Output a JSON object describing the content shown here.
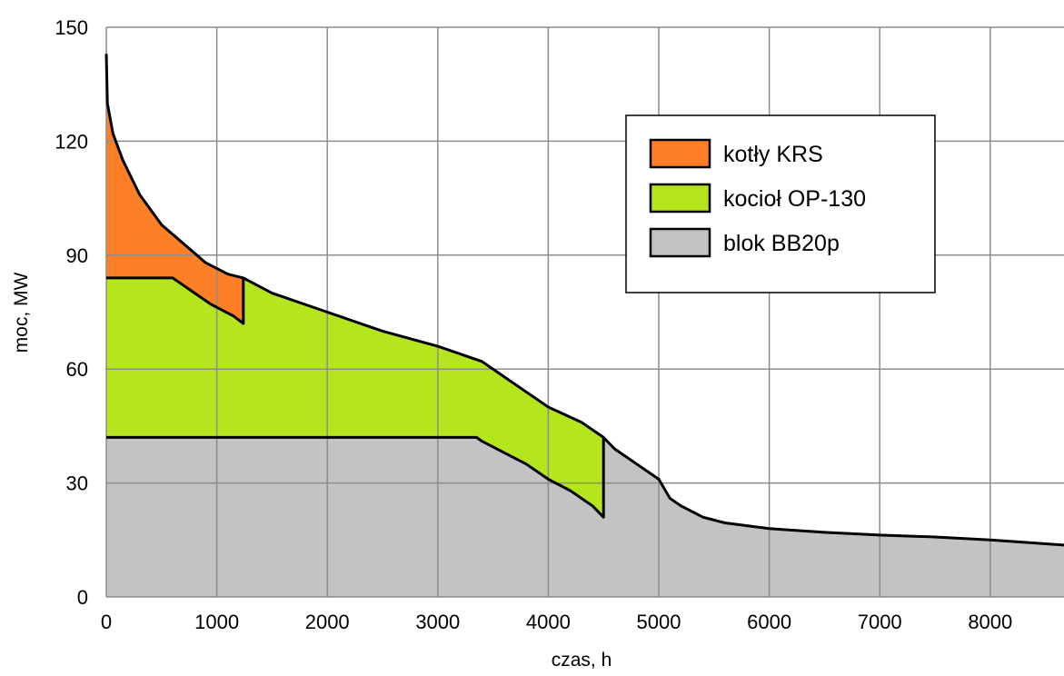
{
  "chart_data": {
    "type": "area",
    "xlabel": "czas, h",
    "ylabel": "moc, MW",
    "xlim": [
      0,
      8760
    ],
    "ylim": [
      0,
      150
    ],
    "x_ticks": [
      0,
      1000,
      2000,
      3000,
      4000,
      5000,
      6000,
      7000,
      8000
    ],
    "y_ticks": [
      0,
      30,
      60,
      90,
      120,
      150
    ],
    "grid": true,
    "legend_position": "upper-right",
    "series": [
      {
        "name": "kotły KRS",
        "color": "#ff7f27",
        "kind": "band",
        "upper": [
          [
            0,
            143
          ],
          [
            10,
            130
          ],
          [
            60,
            122
          ],
          [
            150,
            115
          ],
          [
            300,
            106
          ],
          [
            500,
            98
          ],
          [
            700,
            93
          ],
          [
            900,
            88
          ],
          [
            1100,
            85
          ],
          [
            1240,
            84
          ]
        ],
        "lower": [
          [
            1240,
            72
          ],
          [
            1150,
            74
          ],
          [
            950,
            77
          ],
          [
            800,
            80
          ],
          [
            700,
            82
          ],
          [
            600,
            84
          ],
          [
            0,
            84
          ]
        ]
      },
      {
        "name": "kocioł OP-130",
        "color": "#b5e61d",
        "kind": "band",
        "upper": [
          [
            0,
            84
          ],
          [
            600,
            84
          ],
          [
            700,
            82
          ],
          [
            800,
            80
          ],
          [
            950,
            77
          ],
          [
            1150,
            74
          ],
          [
            1240,
            72
          ],
          [
            1240,
            84
          ],
          [
            1500,
            80
          ],
          [
            2000,
            75
          ],
          [
            2500,
            70
          ],
          [
            3000,
            66
          ],
          [
            3400,
            62
          ],
          [
            3600,
            58
          ],
          [
            3800,
            54
          ],
          [
            4000,
            50
          ],
          [
            4300,
            46
          ],
          [
            4500,
            42
          ]
        ],
        "lower": [
          [
            4500,
            21
          ],
          [
            4400,
            24
          ],
          [
            4200,
            28
          ],
          [
            4000,
            31
          ],
          [
            3800,
            35
          ],
          [
            3600,
            38
          ],
          [
            3400,
            41
          ],
          [
            3350,
            42
          ],
          [
            0,
            42
          ]
        ]
      },
      {
        "name": "blok BB20p",
        "color": "#c3c3c3",
        "kind": "area",
        "upper": [
          [
            0,
            42
          ],
          [
            3350,
            42
          ],
          [
            3400,
            41
          ],
          [
            3600,
            38
          ],
          [
            3800,
            35
          ],
          [
            4000,
            31
          ],
          [
            4200,
            28
          ],
          [
            4400,
            24
          ],
          [
            4500,
            21
          ],
          [
            4500,
            42
          ],
          [
            4600,
            39
          ],
          [
            4800,
            35
          ],
          [
            5000,
            31
          ],
          [
            5100,
            26
          ],
          [
            5200,
            24
          ],
          [
            5400,
            21
          ],
          [
            5600,
            19.5
          ],
          [
            6000,
            18
          ],
          [
            6500,
            17
          ],
          [
            7000,
            16.3
          ],
          [
            7500,
            15.8
          ],
          [
            8000,
            15
          ],
          [
            8500,
            14
          ],
          [
            8760,
            13.5
          ]
        ]
      }
    ]
  }
}
